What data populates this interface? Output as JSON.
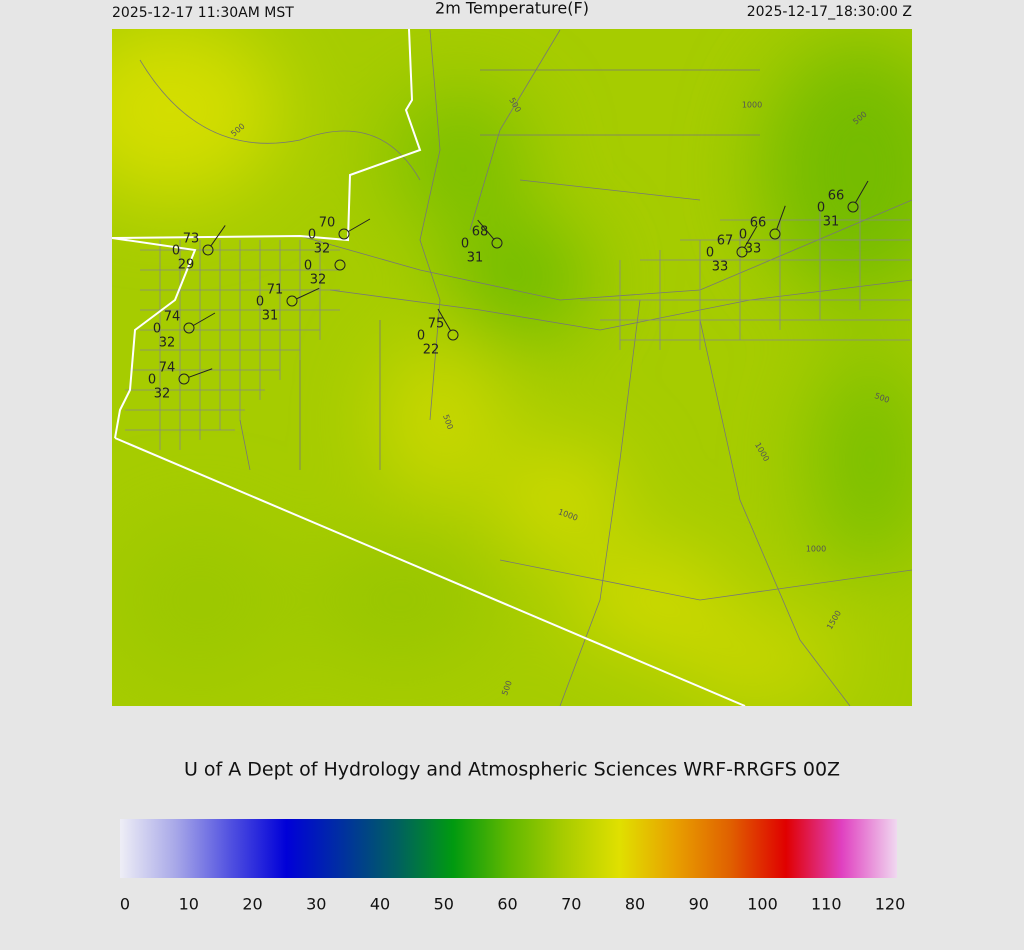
{
  "header": {
    "left": "2025-12-17 11:30AM MST",
    "title": "2m Temperature(F)",
    "right": "2025-12-17_18:30:00 Z"
  },
  "stations": [
    {
      "temp": 73,
      "pressure": 0,
      "dew": 29
    },
    {
      "temp": 70,
      "pressure": 0,
      "dew": 32
    },
    {
      "pressure": 0,
      "dew": 32
    },
    {
      "temp": 71,
      "pressure": 0,
      "dew": 31
    },
    {
      "temp": 74,
      "pressure": 0,
      "dew": 32
    },
    {
      "temp": 74,
      "pressure": 0,
      "dew": 32
    },
    {
      "temp": 75,
      "pressure": 0,
      "dew": 22
    },
    {
      "temp": 68,
      "pressure": 0,
      "dew": 31
    },
    {
      "temp": 67,
      "pressure": 0,
      "dew": 33
    },
    {
      "temp": 66,
      "pressure": 0,
      "dew": 33
    },
    {
      "temp": 66,
      "pressure": 0,
      "dew": 31
    }
  ],
  "contour_labels": [
    500,
    500,
    1000,
    500,
    500,
    1000,
    1000,
    1000,
    1500,
    500,
    500
  ],
  "footer": "U of A Dept of Hydrology and Atmospheric Sciences WRF-RRGFS 00Z",
  "colorbar": {
    "ticks": [
      0,
      10,
      20,
      30,
      40,
      50,
      60,
      70,
      80,
      90,
      100,
      110,
      120
    ],
    "colors": [
      "#eeeef6",
      "#a8a8e8",
      "#5050e0",
      "#0000d8",
      "#0030a0",
      "#006060",
      "#009a10",
      "#60b800",
      "#a8cc00",
      "#e0e000",
      "#e8a000",
      "#e06000",
      "#e00000",
      "#e040c0",
      "#f0d8f0"
    ]
  }
}
